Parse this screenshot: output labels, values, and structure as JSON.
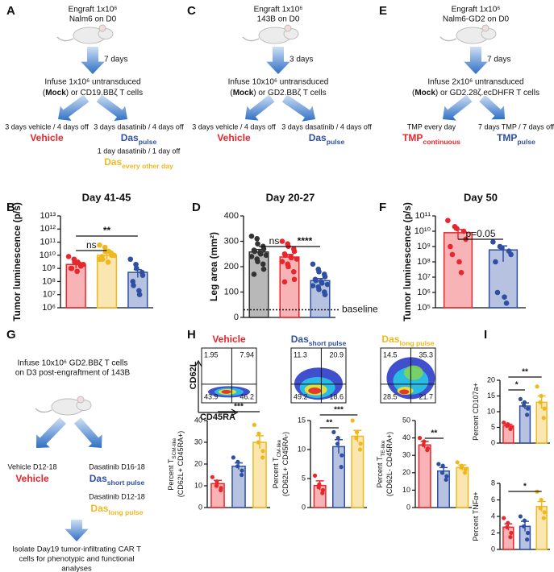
{
  "panel_labels": [
    "A",
    "B",
    "C",
    "D",
    "E",
    "F",
    "G",
    "H",
    "I"
  ],
  "schematics": {
    "A": {
      "engraft": [
        "Engraft 1x10⁶",
        "Nalm6 on D0"
      ],
      "interval": "7 days",
      "infuse": "Infuse 1x10⁶ untransduced",
      "mock": [
        "(",
        "Mock",
        ") or CD19.BBζ T cells"
      ],
      "arms": [
        {
          "regimen": "3 days vehicle / 4 days off",
          "label": {
            "main": "Vehicle"
          },
          "color": "#e8262b"
        },
        {
          "regimen": "3 days dasatinib / 4 days off",
          "label": {
            "main": "Das",
            "sub": "pulse"
          },
          "color": "#2f4fa3"
        },
        {
          "regimen": "1 day dasatinib / 1 day off",
          "label": {
            "main": "Das",
            "sub": "every other day"
          },
          "color": "#f0b81c"
        }
      ]
    },
    "C": {
      "engraft": [
        "Engraft 1x10⁶",
        "143B on D0"
      ],
      "interval": "3 days",
      "infuse": "Infuse 10x10⁶ untransduced",
      "mock": [
        "(",
        "Mock",
        ") or GD2.BBζ T cells"
      ],
      "arms": [
        {
          "regimen": "3 days vehicle / 4 days off",
          "label": {
            "main": "Vehicle"
          },
          "color": "#e8262b"
        },
        {
          "regimen": "3 days dasatinib / 4 days off",
          "label": {
            "main": "Das",
            "sub": "pulse"
          },
          "color": "#2f4fa3"
        }
      ]
    },
    "E": {
      "engraft": [
        "Engraft 1x10⁶",
        "Nalm6-GD2 on D0"
      ],
      "interval": "7 days",
      "infuse": "Infuse 2x10⁶ untransduced",
      "mock": [
        "(",
        "Mock",
        ") or GD2.28ζ.ecDHFR T cells"
      ],
      "arms": [
        {
          "regimen": "TMP every day",
          "label": {
            "main": "TMP",
            "sub": "continuous"
          },
          "color": "#e8262b"
        },
        {
          "regimen": "7 days TMP / 7 days off",
          "label": {
            "main": "TMP",
            "sub": "pulse"
          },
          "color": "#2f4fa3"
        }
      ]
    },
    "G": {
      "infuse": [
        "Infuse 10x10⁶ GD2.BBζ T cells",
        "on D3 post-engraftment of 143B"
      ],
      "arms": [
        {
          "regimen": "Vehicle D12-18",
          "label": {
            "main": "Vehicle"
          },
          "color": "#e8262b"
        },
        {
          "regimen": "Dasatinib D16-18",
          "label": {
            "main": "Das",
            "sub": "short pulse"
          },
          "color": "#2f4fa3"
        },
        {
          "regimen": "Dasatinib D12-18",
          "label": {
            "main": "Das",
            "sub": "long pulse"
          },
          "color": "#f0b81c"
        }
      ],
      "isolate": [
        "Isolate Day19 tumor-infiltrating CAR T",
        "cells for phenotypic and functional",
        "analyses"
      ]
    }
  },
  "flow_cytometry": {
    "y_axis": "CD62L",
    "x_axis": "CD45RA",
    "plots": [
      {
        "title": {
          "main": "Vehicle"
        },
        "color": "#e8262b",
        "quadrants": [
          "1.95",
          "7.94",
          "43.9",
          "46.2"
        ]
      },
      {
        "title": {
          "main": "Das",
          "sub": "short pulse"
        },
        "color": "#2f4fa3",
        "quadrants": [
          "11.3",
          "20.9",
          "49.2",
          "18.6"
        ]
      },
      {
        "title": {
          "main": "Das",
          "sub": "long pulse"
        },
        "color": "#f0b81c",
        "quadrants": [
          "14.5",
          "35.3",
          "28.5",
          "21.7"
        ]
      }
    ]
  },
  "chart_data": [
    {
      "type": "bar",
      "title": "Day 41-45",
      "ylabel": [
        [
          {
            "text": "Tumor luminescence (p/s)"
          }
        ]
      ],
      "log": true,
      "ylim": [
        1000000,
        10000000000000.0
      ],
      "yticks": [
        {
          "value": 1000000,
          "label": "10⁶"
        },
        {
          "value": 10000000,
          "label": "10⁷"
        },
        {
          "value": 100000000,
          "label": "10⁸"
        },
        {
          "value": 1000000000,
          "label": "10⁹"
        },
        {
          "value": 10000000000,
          "label": "10¹⁰"
        },
        {
          "value": 100000000000,
          "label": "10¹¹"
        },
        {
          "value": 1000000000000,
          "label": "10¹²"
        },
        {
          "value": 10000000000000.0,
          "label": "10¹³"
        }
      ],
      "colors": [
        "#e8262b",
        "#f0b81c",
        "#2f4fa3"
      ],
      "values": [
        2000000000,
        10000000000,
        500000000
      ],
      "errors": [
        1000000000,
        5000000000,
        300000000
      ],
      "points": [
        [
          8000000000,
          5000000000,
          3000000000,
          2000000000,
          1500000000,
          1000000000,
          1000000000,
          600000000,
          3000000000,
          2000000000
        ],
        [
          60000000000,
          40000000000,
          20000000000,
          15000000000,
          10000000000,
          8000000000,
          5000000000,
          3000000000,
          20000000000,
          10000000000,
          5000000000
        ],
        [
          5000000000,
          2000000000,
          1000000000,
          500000000,
          300000000,
          100000000,
          50000000,
          20000000,
          10000000
        ]
      ],
      "significance": [
        {
          "bars": [
            0,
            1
          ],
          "label": "ns"
        },
        {
          "bars": [
            0,
            2
          ],
          "label": "**"
        }
      ]
    },
    {
      "type": "bar",
      "title": "Day 20-27",
      "ylabel": [
        [
          {
            "text": "Leg area  (mm²)"
          }
        ]
      ],
      "log": false,
      "ylim": [
        0,
        400
      ],
      "yticks": [
        0,
        100,
        200,
        300,
        400
      ],
      "colors": [
        "#333333",
        "#e8262b",
        "#2f4fa3"
      ],
      "values": [
        258,
        238,
        145
      ],
      "errors": [
        10,
        10,
        8
      ],
      "points": [
        [
          320,
          310,
          290,
          280,
          270,
          265,
          260,
          255,
          250,
          245,
          240,
          230,
          220,
          210,
          190,
          170
        ],
        [
          300,
          290,
          280,
          270,
          260,
          250,
          245,
          240,
          235,
          230,
          220,
          210,
          200,
          180,
          150,
          140
        ],
        [
          210,
          190,
          180,
          170,
          160,
          150,
          145,
          140,
          135,
          130,
          125,
          120,
          110,
          100,
          90
        ]
      ],
      "baseline": {
        "value": 30,
        "label": "baseline"
      },
      "significance": [
        {
          "bars": [
            0,
            1
          ],
          "label": "ns"
        },
        {
          "bars": [
            1,
            2
          ],
          "label": "****"
        }
      ]
    },
    {
      "type": "bar",
      "title": "Day 50",
      "ylabel": [
        [
          {
            "text": "Tumor luminescence (p/s)"
          }
        ]
      ],
      "log": true,
      "ylim": [
        100000,
        100000000000
      ],
      "yticks": [
        {
          "value": 100000,
          "label": "10⁵"
        },
        {
          "value": 1000000,
          "label": "10⁶"
        },
        {
          "value": 10000000,
          "label": "10⁷"
        },
        {
          "value": 100000000,
          "label": "10⁸"
        },
        {
          "value": 1000000000,
          "label": "10⁹"
        },
        {
          "value": 10000000000,
          "label": "10¹⁰"
        },
        {
          "value": 100000000000,
          "label": "10¹¹"
        }
      ],
      "colors": [
        "#e8262b",
        "#2f4fa3"
      ],
      "values": [
        8000000000,
        600000000
      ],
      "errors": [
        5000000000,
        500000000
      ],
      "points": [
        [
          50000000000,
          20000000000,
          15000000000,
          10000000000,
          3000000000,
          1000000000,
          300000000,
          100000000,
          20000000
        ],
        [
          2000000000,
          1000000000,
          800000000,
          500000000,
          300000000,
          100000000,
          1000000,
          500000,
          200000
        ]
      ],
      "significance": [
        {
          "bars": [
            0,
            1
          ],
          "label": "p=0.05"
        }
      ]
    },
    {
      "type": "bar",
      "ylabel": [
        [
          {
            "text": "Percent T"
          },
          {
            "text": "SCM-like",
            "sub": true
          }
        ],
        [
          {
            "text": "(CD62L+ CD45RA+)"
          }
        ]
      ],
      "log": false,
      "ylim": [
        0,
        40
      ],
      "yticks": [
        0,
        10,
        20,
        30,
        40
      ],
      "colors": [
        "#e8262b",
        "#2f4fa3",
        "#f0b81c"
      ],
      "values": [
        11,
        19,
        30
      ],
      "errors": [
        1.5,
        1.5,
        3
      ],
      "points": [
        [
          14,
          12,
          10,
          9,
          8
        ],
        [
          23,
          21,
          19,
          17,
          15
        ],
        [
          38,
          34,
          30,
          26,
          23
        ]
      ],
      "significance": [
        {
          "bars": [
            0,
            2
          ],
          "label": "***"
        }
      ]
    },
    {
      "type": "bar",
      "ylabel": [
        [
          {
            "text": "Percent T"
          },
          {
            "text": "CM-like",
            "sub": true
          }
        ],
        [
          {
            "text": "(CD62L+ CD45RA-)"
          }
        ]
      ],
      "log": false,
      "ylim": [
        0,
        15
      ],
      "yticks": [
        0,
        5,
        10,
        15
      ],
      "colors": [
        "#e8262b",
        "#2f4fa3",
        "#f0b81c"
      ],
      "values": [
        3.8,
        10.5,
        12.3
      ],
      "errors": [
        0.8,
        1.2,
        1
      ],
      "points": [
        [
          5.5,
          4,
          3.5,
          3,
          2.5
        ],
        [
          13,
          12,
          11,
          9,
          7
        ],
        [
          15,
          13,
          12,
          11,
          10
        ]
      ],
      "significance": [
        {
          "bars": [
            0,
            1
          ],
          "label": "**"
        },
        {
          "bars": [
            0,
            2
          ],
          "label": "***"
        }
      ]
    },
    {
      "type": "bar",
      "ylabel": [
        [
          {
            "text": "Percent T"
          },
          {
            "text": "TE-like",
            "sub": true
          }
        ],
        [
          {
            "text": "(CD62L- CD45RA+)"
          }
        ]
      ],
      "log": false,
      "ylim": [
        0,
        50
      ],
      "yticks": [
        0,
        10,
        20,
        30,
        40,
        50
      ],
      "colors": [
        "#e8262b",
        "#2f4fa3",
        "#f0b81c"
      ],
      "values": [
        36,
        21,
        23
      ],
      "errors": [
        2,
        2,
        1.5
      ],
      "points": [
        [
          40,
          38,
          36,
          34,
          33
        ],
        [
          25,
          24,
          20,
          18,
          16
        ],
        [
          26,
          24,
          23,
          22,
          20
        ]
      ],
      "significance": [
        {
          "bars": [
            0,
            1
          ],
          "label": "**"
        }
      ]
    },
    {
      "type": "bar",
      "ylabel": [
        [
          {
            "text": "Percent CD107a+"
          }
        ]
      ],
      "log": false,
      "ylim": [
        0,
        20
      ],
      "yticks": [
        0,
        5,
        10,
        15,
        20
      ],
      "colors": [
        "#e8262b",
        "#2f4fa3",
        "#f0b81c"
      ],
      "values": [
        5.5,
        11.8,
        13
      ],
      "errors": [
        0.5,
        1,
        2
      ],
      "points": [
        [
          6.5,
          6,
          5.5,
          5,
          4.5
        ],
        [
          14,
          13,
          12,
          11,
          9
        ],
        [
          18,
          15,
          13,
          11,
          8
        ]
      ],
      "significance": [
        {
          "bars": [
            0,
            1
          ],
          "label": "*"
        },
        {
          "bars": [
            0,
            2
          ],
          "label": "**"
        }
      ]
    },
    {
      "type": "bar",
      "ylabel": [
        [
          {
            "text": "Percent TNFα+"
          }
        ]
      ],
      "log": false,
      "ylim": [
        0,
        8
      ],
      "yticks": [
        0,
        2,
        4,
        6,
        8
      ],
      "colors": [
        "#e8262b",
        "#2f4fa3",
        "#f0b81c"
      ],
      "values": [
        2.7,
        2.8,
        5.2
      ],
      "errors": [
        0.4,
        0.6,
        0.6
      ],
      "points": [
        [
          3.8,
          3.2,
          2.7,
          2,
          1.5
        ],
        [
          4,
          3.5,
          2.8,
          2,
          1.2
        ],
        [
          7,
          6,
          5,
          4.5,
          3.8
        ]
      ],
      "significance": [
        {
          "bars": [
            0,
            2
          ],
          "label": "*"
        }
      ]
    }
  ]
}
